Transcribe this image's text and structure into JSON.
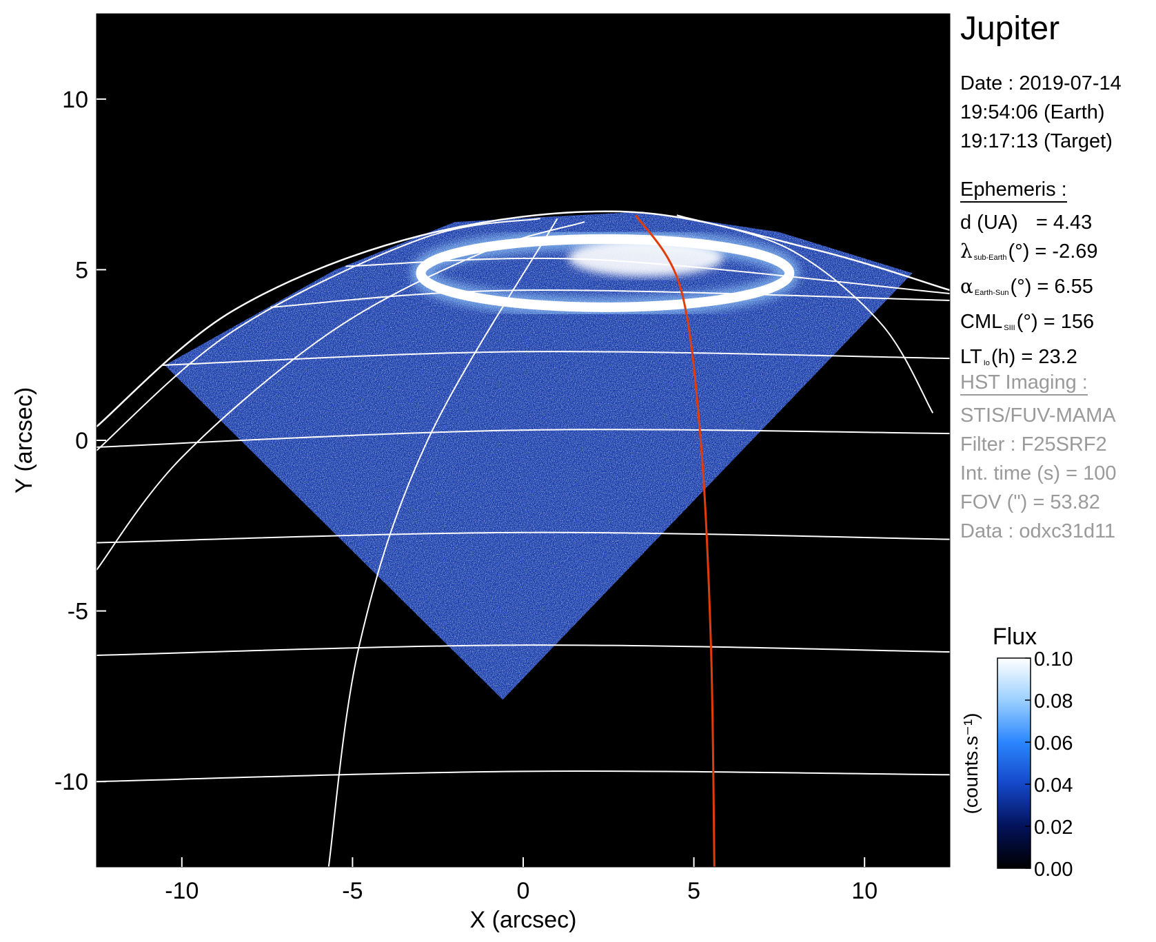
{
  "panel": {
    "target": "Jupiter",
    "date_line": "Date : 2019-07-14",
    "time_earth": "19:54:06 (Earth)",
    "time_target": "19:17:13 (Target)",
    "ephemeris_heading": "Ephemeris :",
    "eph_d_label": "d (UA)",
    "eph_d_value": "= 4.43",
    "eph_lat_symbol": "λ",
    "eph_lat_sub": "sub-Earth",
    "eph_lat_value": "(°) = -2.69",
    "eph_alpha_symbol": "α",
    "eph_alpha_sub": "Earth-Sun",
    "eph_alpha_value": "(°) = 6.55",
    "eph_cml_symbol": "CML",
    "eph_cml_sub": "SIII",
    "eph_cml_value": "(°) = 156",
    "eph_lt_symbol": "LT",
    "eph_lt_sub": "Io",
    "eph_lt_value": "(h) = 23.2",
    "hst_heading": "HST Imaging :",
    "hst_instrument": "STIS/FUV-MAMA",
    "hst_filter": "Filter : F25SRF2",
    "hst_inttime": "Int. time (s) = 100",
    "hst_fov": "FOV (\") = 53.82",
    "hst_data": "Data : odxc31d11"
  },
  "chart_data": {
    "type": "heatmap",
    "xlabel": "X (arcsec)",
    "ylabel": "Y (arcsec)",
    "xlim": [
      -12.5,
      12.5
    ],
    "ylim": [
      -12.5,
      12.5
    ],
    "xticks": [
      -10,
      -5,
      0,
      5,
      10
    ],
    "xtick_labels": [
      "-10",
      "-5",
      "0",
      "5",
      "10"
    ],
    "yticks": [
      -10,
      -5,
      0,
      5,
      10
    ],
    "ytick_labels": [
      "-10",
      "-5",
      "0",
      "5",
      "10"
    ],
    "colorbar": {
      "title": "Flux",
      "label": "(counts.s⁻¹)",
      "min": 0.0,
      "max": 0.1,
      "ticks": [
        0.0,
        0.02,
        0.04,
        0.06,
        0.08,
        0.1
      ],
      "tick_labels": [
        "0.00",
        "0.02",
        "0.04",
        "0.06",
        "0.08",
        "0.10"
      ],
      "colors": [
        "#000000",
        "#03125a",
        "#1447c8",
        "#2b86ff",
        "#9bd0ff",
        "#ffffff"
      ]
    },
    "image_footprint": [
      [
        -10.5,
        2.2
      ],
      [
        -5.5,
        5.0
      ],
      [
        -2.0,
        6.4
      ],
      [
        3.5,
        6.7
      ],
      [
        7.5,
        6.1
      ],
      [
        11.4,
        4.9
      ],
      [
        -0.6,
        -7.6
      ]
    ],
    "auroral_oval": {
      "center": [
        2.4,
        4.9
      ],
      "semi_axes": [
        5.4,
        1.0
      ],
      "color": "#ffffff"
    },
    "latitude_lines": [
      {
        "points": [
          [
            -12.5,
            -10.0
          ],
          [
            0,
            -9.7
          ],
          [
            12.5,
            -9.8
          ]
        ]
      },
      {
        "points": [
          [
            -12.5,
            -6.3
          ],
          [
            0,
            -6.0
          ],
          [
            12.5,
            -6.2
          ]
        ]
      },
      {
        "points": [
          [
            -12.5,
            -3.0
          ],
          [
            0,
            -2.7
          ],
          [
            12.5,
            -2.9
          ]
        ]
      },
      {
        "points": [
          [
            -12.5,
            -0.2
          ],
          [
            0,
            0.3
          ],
          [
            12.5,
            0.2
          ]
        ]
      },
      {
        "points": [
          [
            -10.6,
            2.2
          ],
          [
            0,
            2.6
          ],
          [
            12.5,
            2.4
          ]
        ]
      },
      {
        "points": [
          [
            -7.4,
            3.9
          ],
          [
            0,
            4.4
          ],
          [
            12.5,
            4.1
          ]
        ]
      },
      {
        "points": [
          [
            -5.2,
            5.1
          ],
          [
            2,
            5.3
          ],
          [
            12.5,
            4.3
          ]
        ]
      }
    ],
    "meridians": [
      {
        "points": [
          [
            -5.7,
            -12.5
          ],
          [
            -4.8,
            -6
          ],
          [
            -2.8,
            0
          ],
          [
            1.0,
            6.5
          ]
        ]
      },
      {
        "points": [
          [
            -12.5,
            -3.8
          ],
          [
            -10.0,
            -0.5
          ],
          [
            -5.6,
            3.2
          ],
          [
            -1.2,
            5.5
          ],
          [
            1.8,
            6.4
          ]
        ]
      },
      {
        "points": [
          [
            -12.5,
            -0.3
          ],
          [
            -8.5,
            3.2
          ],
          [
            -3.0,
            5.9
          ],
          [
            0.5,
            6.5
          ]
        ]
      },
      {
        "points": [
          [
            12.0,
            0.8
          ],
          [
            10.5,
            3.4
          ],
          [
            7.8,
            5.6
          ],
          [
            4.5,
            6.6
          ]
        ]
      }
    ],
    "limb": [
      [
        -12.5,
        0.4
      ],
      [
        -8.5,
        3.8
      ],
      [
        -3.0,
        6.0
      ],
      [
        3.0,
        6.7
      ],
      [
        8.5,
        5.6
      ],
      [
        12.5,
        4.4
      ]
    ],
    "io_footprint_line": {
      "color": "#e13c0a",
      "points": [
        [
          3.3,
          6.6
        ],
        [
          4.6,
          4.5
        ],
        [
          5.2,
          0.0
        ],
        [
          5.5,
          -6.0
        ],
        [
          5.6,
          -12.5
        ]
      ]
    }
  }
}
